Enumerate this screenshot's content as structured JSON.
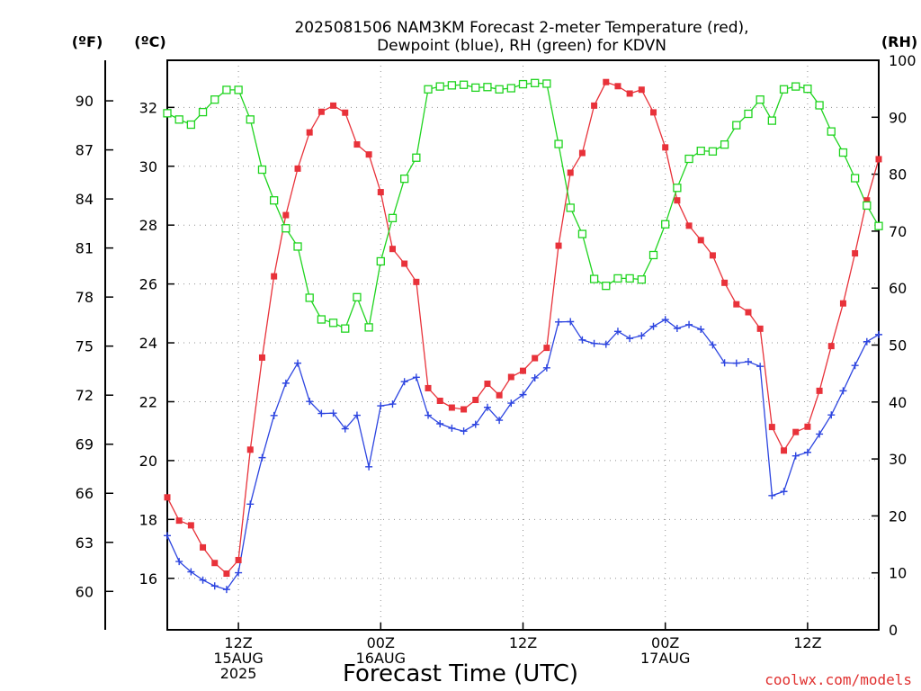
{
  "chart_data": {
    "type": "line",
    "title": "2025081506 NAM3KM Forecast 2-meter Temperature (red),",
    "subtitle": "Dewpoint (blue), RH (green) for KDVN",
    "xlabel": "Forecast Time (UTC)",
    "units": {
      "fahrenheit": "(ºF)",
      "celsius": "(ºC)",
      "rh": "(RH)"
    },
    "credit": "coolwx.com/models",
    "x_step_hours": 1,
    "x_count": 61,
    "celsius_ylim": [
      14.25,
      33.6
    ],
    "rh_ylim": [
      0,
      100
    ],
    "fahrenheit_ticks": [
      60,
      63,
      66,
      69,
      72,
      75,
      78,
      81,
      84,
      87,
      90
    ],
    "celsius_ticks": [
      16,
      18,
      20,
      22,
      24,
      26,
      28,
      30,
      32
    ],
    "rh_ticks": [
      0,
      10,
      20,
      30,
      40,
      50,
      60,
      70,
      80,
      90,
      100
    ],
    "x_ticks": [
      {
        "hour": 6,
        "lines": [
          "12Z",
          "15AUG",
          "2025"
        ]
      },
      {
        "hour": 18,
        "lines": [
          "00Z",
          "16AUG"
        ]
      },
      {
        "hour": 30,
        "lines": [
          "12Z"
        ]
      },
      {
        "hour": 42,
        "lines": [
          "00Z",
          "17AUG"
        ]
      },
      {
        "hour": 54,
        "lines": [
          "12Z"
        ]
      }
    ],
    "grid": true,
    "colors": {
      "temperature": "#e8323a",
      "dewpoint": "#2d45e0",
      "rh": "#1fd41f",
      "grid": "#909090",
      "credit": "#e0302f"
    },
    "series": [
      {
        "name": "Temperature",
        "axis": "celsius",
        "marker": "filled-square",
        "values": [
          18.75,
          17.96,
          17.8,
          17.05,
          16.52,
          16.16,
          16.62,
          20.37,
          23.5,
          26.26,
          28.34,
          29.92,
          31.15,
          31.85,
          32.06,
          31.82,
          30.74,
          30.4,
          29.12,
          27.19,
          26.69,
          26.07,
          22.46,
          22.03,
          21.8,
          21.74,
          22.06,
          22.61,
          22.22,
          22.84,
          23.05,
          23.48,
          23.83,
          27.3,
          29.78,
          30.45,
          32.06,
          32.86,
          32.72,
          32.47,
          32.6,
          31.83,
          30.64,
          28.84,
          27.98,
          27.49,
          26.97,
          26.04,
          25.31,
          25.04,
          24.48,
          21.14,
          20.34,
          20.97,
          21.15,
          22.37,
          23.89,
          25.34,
          27.04,
          28.84,
          30.24
        ]
      },
      {
        "name": "Dewpoint",
        "axis": "celsius",
        "marker": "plus",
        "values": [
          17.45,
          16.57,
          16.22,
          15.94,
          15.74,
          15.62,
          16.19,
          18.52,
          20.1,
          21.53,
          22.63,
          23.31,
          22.01,
          21.6,
          21.61,
          21.08,
          21.54,
          19.79,
          21.86,
          21.92,
          22.68,
          22.83,
          21.54,
          21.25,
          21.1,
          21.0,
          21.23,
          21.81,
          21.37,
          21.95,
          22.24,
          22.81,
          23.15,
          24.71,
          24.72,
          24.1,
          23.98,
          23.95,
          24.39,
          24.15,
          24.24,
          24.56,
          24.79,
          24.49,
          24.62,
          24.46,
          23.93,
          23.32,
          23.31,
          23.36,
          23.2,
          18.81,
          18.95,
          20.16,
          20.28,
          20.9,
          21.55,
          22.37,
          23.23,
          24.04,
          24.28
        ]
      },
      {
        "name": "RH",
        "axis": "rh",
        "marker": "open-square",
        "values": [
          90.7,
          89.6,
          88.7,
          90.9,
          93.1,
          94.8,
          94.8,
          89.6,
          80.8,
          75.4,
          70.5,
          67.3,
          58.3,
          54.5,
          53.9,
          52.9,
          58.4,
          53.1,
          64.7,
          72.3,
          79.2,
          82.9,
          94.9,
          95.4,
          95.6,
          95.7,
          95.2,
          95.3,
          94.9,
          95.1,
          95.8,
          96.0,
          95.9,
          85.3,
          74.1,
          69.5,
          61.6,
          60.4,
          61.7,
          61.7,
          61.5,
          65.8,
          71.2,
          77.6,
          82.7,
          84.1,
          84.0,
          85.2,
          88.6,
          90.6,
          93.1,
          89.4,
          94.9,
          95.4,
          95.0,
          92.1,
          87.5,
          83.8,
          79.3,
          74.5,
          70.9
        ]
      }
    ]
  }
}
